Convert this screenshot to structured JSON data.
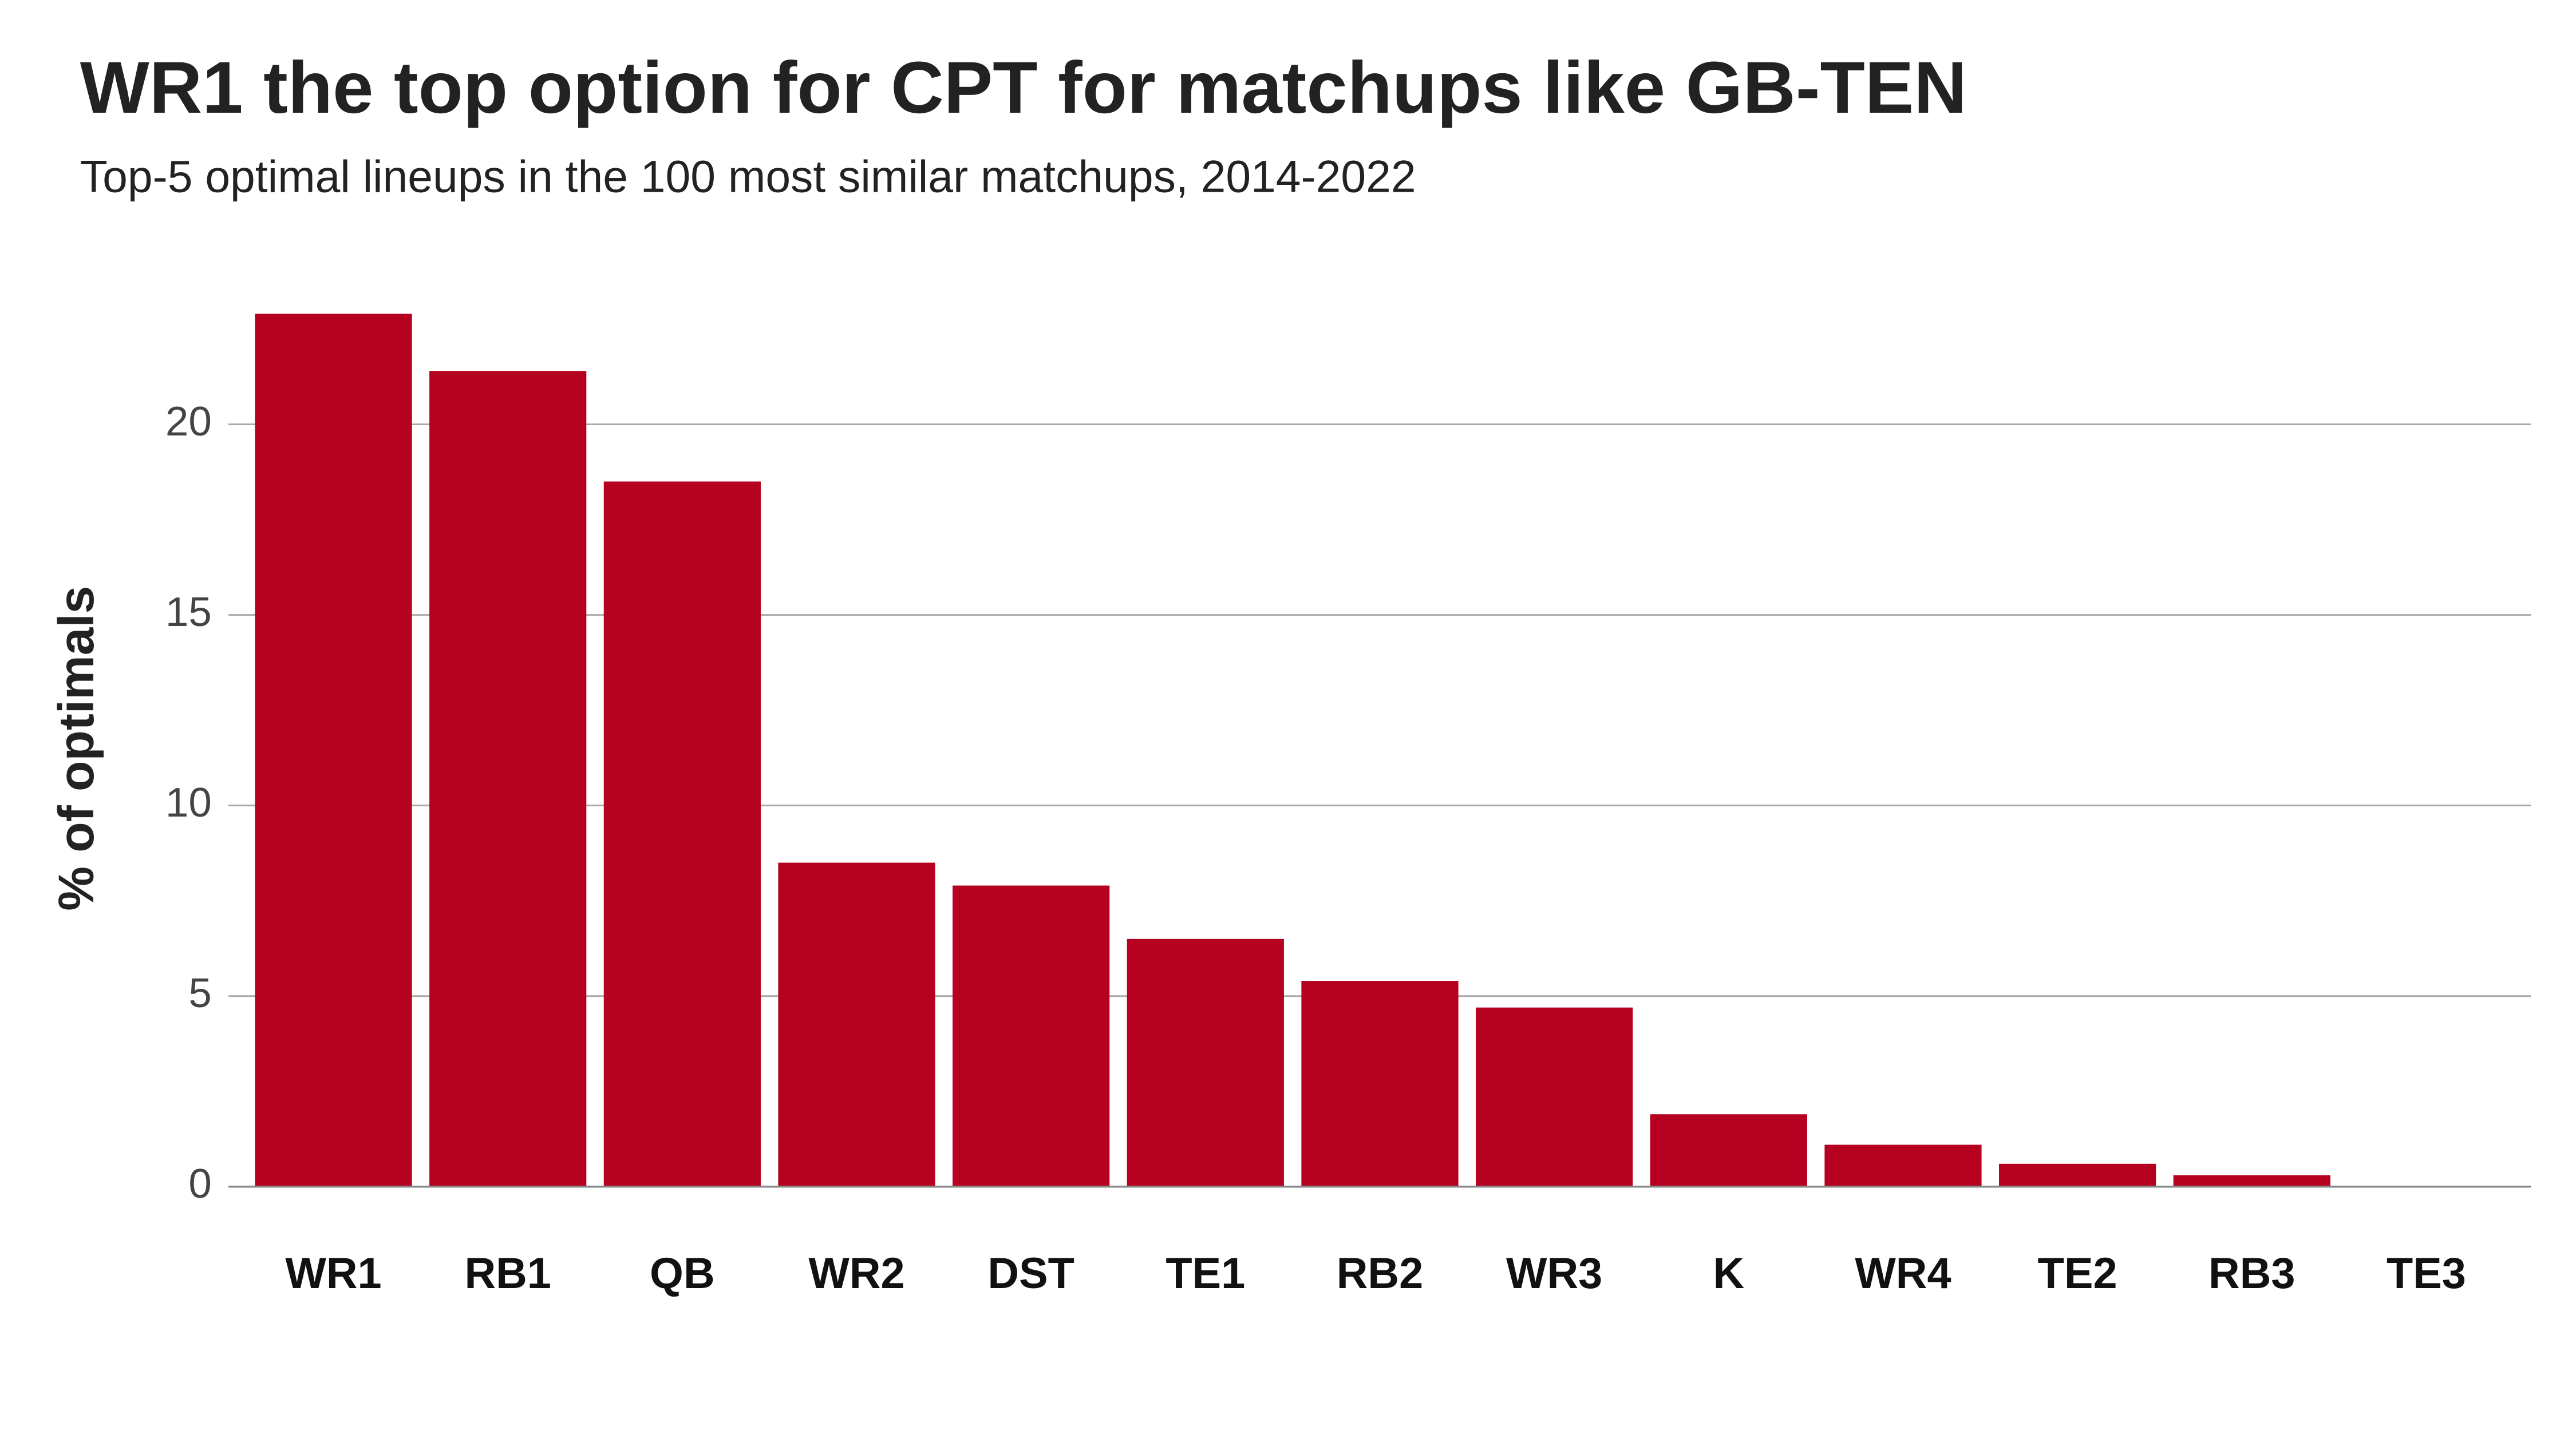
{
  "chart_data": {
    "type": "bar",
    "title": "WR1 the top option for CPT for matchups like GB-TEN",
    "subtitle": "Top-5 optimal lineups in the 100 most similar matchups, 2014-2022",
    "y_label": "% of optimals",
    "categories": [
      "WR1",
      "RB1",
      "QB",
      "WR2",
      "DST",
      "TE1",
      "RB2",
      "WR3",
      "K",
      "WR4",
      "TE2",
      "RB3",
      "TE3"
    ],
    "values": [
      22.9,
      21.4,
      18.5,
      8.5,
      7.9,
      6.5,
      5.4,
      4.7,
      1.9,
      1.1,
      0.6,
      0.3,
      0
    ],
    "color": "#b5001f",
    "ylim": [
      0,
      23
    ],
    "yticks": [
      0,
      5,
      10,
      15,
      20
    ],
    "grid": true
  }
}
